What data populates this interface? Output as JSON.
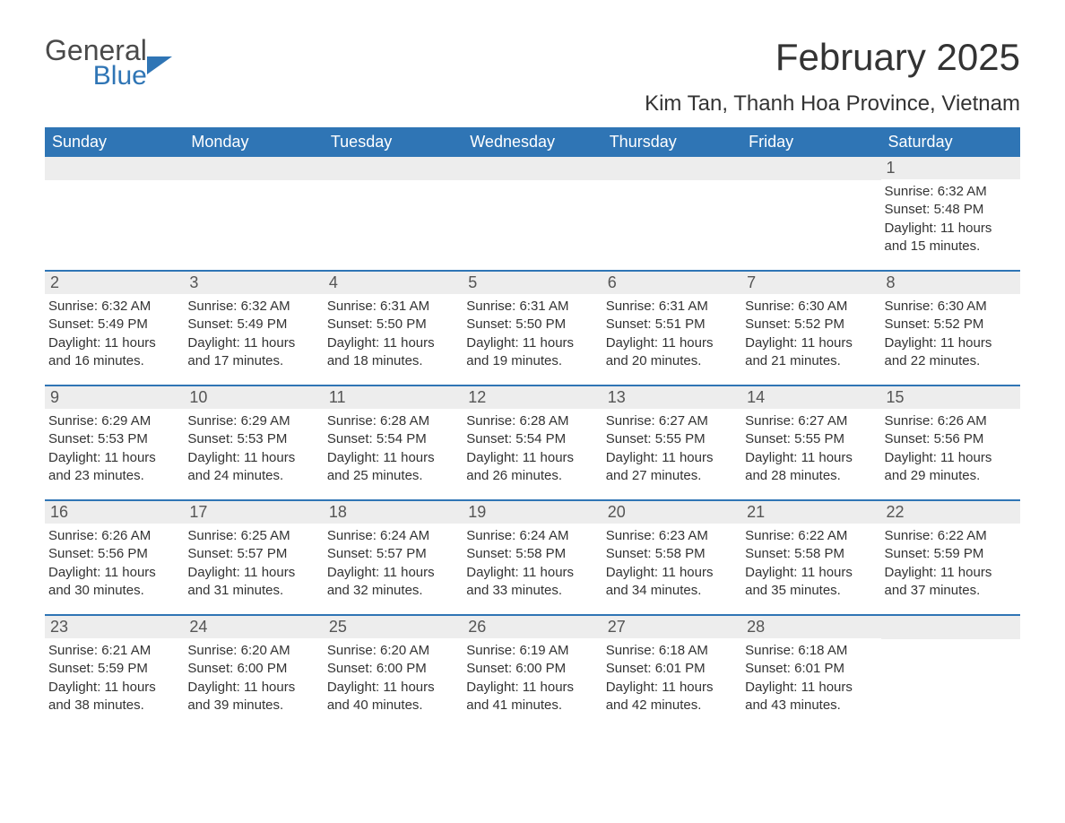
{
  "logo": {
    "line1": "General",
    "line2": "Blue"
  },
  "title": "February 2025",
  "location": "Kim Tan, Thanh Hoa Province, Vietnam",
  "colors": {
    "header_bg": "#2F75B5",
    "header_text": "#ffffff",
    "daynum_bg": "#EDEDED",
    "body_text": "#333333",
    "logo_blue": "#2F75B5",
    "logo_gray": "#4a4a4a"
  },
  "daysOfWeek": [
    "Sunday",
    "Monday",
    "Tuesday",
    "Wednesday",
    "Thursday",
    "Friday",
    "Saturday"
  ],
  "weeks": [
    [
      null,
      null,
      null,
      null,
      null,
      null,
      {
        "n": "1",
        "sunrise": "Sunrise: 6:32 AM",
        "sunset": "Sunset: 5:48 PM",
        "day1": "Daylight: 11 hours",
        "day2": "and 15 minutes."
      }
    ],
    [
      {
        "n": "2",
        "sunrise": "Sunrise: 6:32 AM",
        "sunset": "Sunset: 5:49 PM",
        "day1": "Daylight: 11 hours",
        "day2": "and 16 minutes."
      },
      {
        "n": "3",
        "sunrise": "Sunrise: 6:32 AM",
        "sunset": "Sunset: 5:49 PM",
        "day1": "Daylight: 11 hours",
        "day2": "and 17 minutes."
      },
      {
        "n": "4",
        "sunrise": "Sunrise: 6:31 AM",
        "sunset": "Sunset: 5:50 PM",
        "day1": "Daylight: 11 hours",
        "day2": "and 18 minutes."
      },
      {
        "n": "5",
        "sunrise": "Sunrise: 6:31 AM",
        "sunset": "Sunset: 5:50 PM",
        "day1": "Daylight: 11 hours",
        "day2": "and 19 minutes."
      },
      {
        "n": "6",
        "sunrise": "Sunrise: 6:31 AM",
        "sunset": "Sunset: 5:51 PM",
        "day1": "Daylight: 11 hours",
        "day2": "and 20 minutes."
      },
      {
        "n": "7",
        "sunrise": "Sunrise: 6:30 AM",
        "sunset": "Sunset: 5:52 PM",
        "day1": "Daylight: 11 hours",
        "day2": "and 21 minutes."
      },
      {
        "n": "8",
        "sunrise": "Sunrise: 6:30 AM",
        "sunset": "Sunset: 5:52 PM",
        "day1": "Daylight: 11 hours",
        "day2": "and 22 minutes."
      }
    ],
    [
      {
        "n": "9",
        "sunrise": "Sunrise: 6:29 AM",
        "sunset": "Sunset: 5:53 PM",
        "day1": "Daylight: 11 hours",
        "day2": "and 23 minutes."
      },
      {
        "n": "10",
        "sunrise": "Sunrise: 6:29 AM",
        "sunset": "Sunset: 5:53 PM",
        "day1": "Daylight: 11 hours",
        "day2": "and 24 minutes."
      },
      {
        "n": "11",
        "sunrise": "Sunrise: 6:28 AM",
        "sunset": "Sunset: 5:54 PM",
        "day1": "Daylight: 11 hours",
        "day2": "and 25 minutes."
      },
      {
        "n": "12",
        "sunrise": "Sunrise: 6:28 AM",
        "sunset": "Sunset: 5:54 PM",
        "day1": "Daylight: 11 hours",
        "day2": "and 26 minutes."
      },
      {
        "n": "13",
        "sunrise": "Sunrise: 6:27 AM",
        "sunset": "Sunset: 5:55 PM",
        "day1": "Daylight: 11 hours",
        "day2": "and 27 minutes."
      },
      {
        "n": "14",
        "sunrise": "Sunrise: 6:27 AM",
        "sunset": "Sunset: 5:55 PM",
        "day1": "Daylight: 11 hours",
        "day2": "and 28 minutes."
      },
      {
        "n": "15",
        "sunrise": "Sunrise: 6:26 AM",
        "sunset": "Sunset: 5:56 PM",
        "day1": "Daylight: 11 hours",
        "day2": "and 29 minutes."
      }
    ],
    [
      {
        "n": "16",
        "sunrise": "Sunrise: 6:26 AM",
        "sunset": "Sunset: 5:56 PM",
        "day1": "Daylight: 11 hours",
        "day2": "and 30 minutes."
      },
      {
        "n": "17",
        "sunrise": "Sunrise: 6:25 AM",
        "sunset": "Sunset: 5:57 PM",
        "day1": "Daylight: 11 hours",
        "day2": "and 31 minutes."
      },
      {
        "n": "18",
        "sunrise": "Sunrise: 6:24 AM",
        "sunset": "Sunset: 5:57 PM",
        "day1": "Daylight: 11 hours",
        "day2": "and 32 minutes."
      },
      {
        "n": "19",
        "sunrise": "Sunrise: 6:24 AM",
        "sunset": "Sunset: 5:58 PM",
        "day1": "Daylight: 11 hours",
        "day2": "and 33 minutes."
      },
      {
        "n": "20",
        "sunrise": "Sunrise: 6:23 AM",
        "sunset": "Sunset: 5:58 PM",
        "day1": "Daylight: 11 hours",
        "day2": "and 34 minutes."
      },
      {
        "n": "21",
        "sunrise": "Sunrise: 6:22 AM",
        "sunset": "Sunset: 5:58 PM",
        "day1": "Daylight: 11 hours",
        "day2": "and 35 minutes."
      },
      {
        "n": "22",
        "sunrise": "Sunrise: 6:22 AM",
        "sunset": "Sunset: 5:59 PM",
        "day1": "Daylight: 11 hours",
        "day2": "and 37 minutes."
      }
    ],
    [
      {
        "n": "23",
        "sunrise": "Sunrise: 6:21 AM",
        "sunset": "Sunset: 5:59 PM",
        "day1": "Daylight: 11 hours",
        "day2": "and 38 minutes."
      },
      {
        "n": "24",
        "sunrise": "Sunrise: 6:20 AM",
        "sunset": "Sunset: 6:00 PM",
        "day1": "Daylight: 11 hours",
        "day2": "and 39 minutes."
      },
      {
        "n": "25",
        "sunrise": "Sunrise: 6:20 AM",
        "sunset": "Sunset: 6:00 PM",
        "day1": "Daylight: 11 hours",
        "day2": "and 40 minutes."
      },
      {
        "n": "26",
        "sunrise": "Sunrise: 6:19 AM",
        "sunset": "Sunset: 6:00 PM",
        "day1": "Daylight: 11 hours",
        "day2": "and 41 minutes."
      },
      {
        "n": "27",
        "sunrise": "Sunrise: 6:18 AM",
        "sunset": "Sunset: 6:01 PM",
        "day1": "Daylight: 11 hours",
        "day2": "and 42 minutes."
      },
      {
        "n": "28",
        "sunrise": "Sunrise: 6:18 AM",
        "sunset": "Sunset: 6:01 PM",
        "day1": "Daylight: 11 hours",
        "day2": "and 43 minutes."
      },
      null
    ]
  ]
}
